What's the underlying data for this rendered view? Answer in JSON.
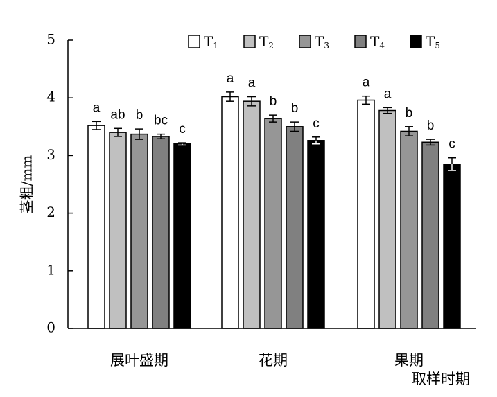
{
  "chart_data": {
    "type": "bar",
    "title": "",
    "ylabel": "茎粗/mm",
    "xlabel": "取样时期",
    "ylim": [
      0,
      5
    ],
    "yticks": [
      "0",
      "1",
      "2",
      "3",
      "4",
      "5"
    ],
    "categories": [
      "展叶盛期",
      "花期",
      "果期"
    ],
    "legend_position": "top-right",
    "grid": false,
    "series": [
      {
        "name": "T",
        "sub": "1",
        "color": "#ffffff",
        "values": [
          3.52,
          4.02,
          3.96
        ],
        "errors": [
          0.07,
          0.08,
          0.07
        ],
        "letters": [
          "a",
          "a",
          "a"
        ]
      },
      {
        "name": "T",
        "sub": "2",
        "color": "#c0c0c0",
        "values": [
          3.4,
          3.94,
          3.78
        ],
        "errors": [
          0.07,
          0.08,
          0.05
        ],
        "letters": [
          "ab",
          "a",
          "a"
        ]
      },
      {
        "name": "T",
        "sub": "3",
        "color": "#969696",
        "values": [
          3.37,
          3.64,
          3.42
        ],
        "errors": [
          0.09,
          0.06,
          0.08
        ],
        "letters": [
          "b",
          "b",
          "b"
        ]
      },
      {
        "name": "T",
        "sub": "4",
        "color": "#808080",
        "values": [
          3.33,
          3.5,
          3.23
        ],
        "errors": [
          0.04,
          0.08,
          0.05
        ],
        "letters": [
          "bc",
          "b",
          "b"
        ]
      },
      {
        "name": "T",
        "sub": "5",
        "color": "#000000",
        "values": [
          3.2,
          3.26,
          2.85
        ],
        "errors": [
          0.02,
          0.06,
          0.11
        ],
        "letters": [
          "c",
          "c",
          "c"
        ]
      }
    ]
  }
}
